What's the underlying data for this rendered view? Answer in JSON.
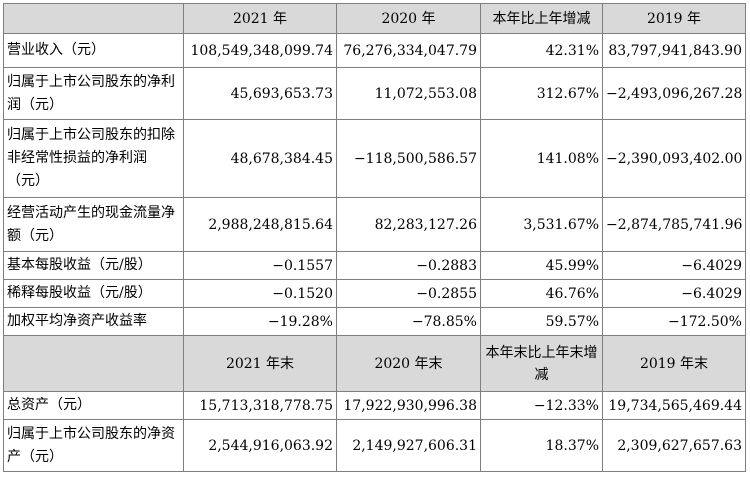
{
  "table1": {
    "headers": [
      "",
      "2021 年",
      "2020 年",
      "本年比上年增减",
      "2019 年"
    ],
    "rows": [
      {
        "label": "营业收入（元）",
        "v2021": "108,549,348,099.74",
        "v2020": "76,276,334,047.79",
        "change": "42.31%",
        "v2019": "83,797,941,843.90"
      },
      {
        "label": "归属于上市公司股东的净利润（元）",
        "v2021": "45,693,653.73",
        "v2020": "11,072,553.08",
        "change": "312.67%",
        "v2019": "−2,493,096,267.28"
      },
      {
        "label": "归属于上市公司股东的扣除非经常性损益的净利润（元）",
        "v2021": "48,678,384.45",
        "v2020": "−118,500,586.57",
        "change": "141.08%",
        "v2019": "−2,390,093,402.00"
      },
      {
        "label": "经营活动产生的现金流量净额（元）",
        "v2021": "2,988,248,815.64",
        "v2020": "82,283,127.26",
        "change": "3,531.67%",
        "v2019": "−2,874,785,741.96"
      },
      {
        "label": "基本每股收益（元/股）",
        "v2021": "−0.1557",
        "v2020": "−0.2883",
        "change": "45.99%",
        "v2019": "−6.4029"
      },
      {
        "label": "稀释每股收益（元/股）",
        "v2021": "−0.1520",
        "v2020": "−0.2855",
        "change": "46.76%",
        "v2019": "−6.4029"
      },
      {
        "label": "加权平均净资产收益率",
        "v2021": "−19.28%",
        "v2020": "−78.85%",
        "change": "59.57%",
        "v2019": "−172.50%"
      }
    ]
  },
  "table2": {
    "headers": [
      "",
      "2021 年末",
      "2020 年末",
      "本年末比上年末增减",
      "2019 年末"
    ],
    "rows": [
      {
        "label": "总资产（元）",
        "v2021": "15,713,318,778.75",
        "v2020": "17,922,930,996.38",
        "change": "−12.33%",
        "v2019": "19,734,565,469.44"
      },
      {
        "label": "归属于上市公司股东的净资产（元）",
        "v2021": "2,544,916,063.92",
        "v2020": "2,149,927,606.31",
        "change": "18.37%",
        "v2019": "2,309,627,657.63"
      }
    ]
  }
}
